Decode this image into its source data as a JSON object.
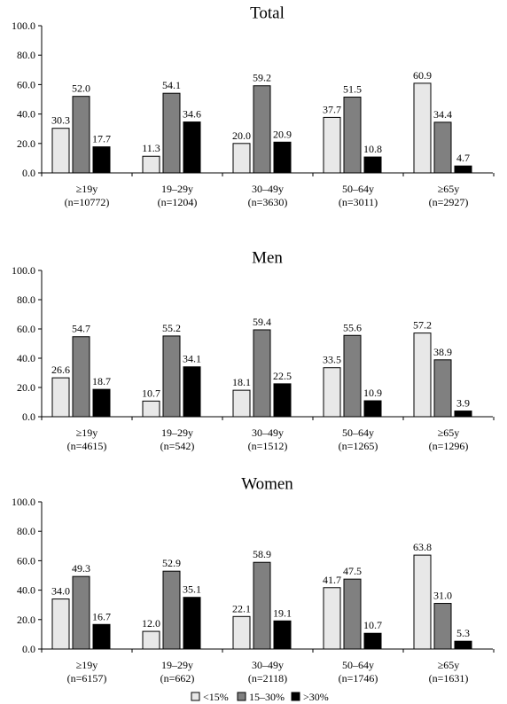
{
  "colors": {
    "<15%": "#e8e8e8",
    "15–30%": "#808080",
    ">30%": "#000000"
  },
  "legend": [
    "<15%",
    "15–30%",
    ">30%"
  ],
  "chart_data": [
    {
      "type": "bar",
      "title": "Total",
      "ylim": [
        0,
        100
      ],
      "yticks": [
        "0.0",
        "20.0",
        "40.0",
        "60.0",
        "80.0",
        "100.0"
      ],
      "categories": [
        [
          "≥19y",
          "(n=10772)"
        ],
        [
          "19–29y",
          "(n=1204)"
        ],
        [
          "30–49y",
          "(n=3630)"
        ],
        [
          "50–64y",
          "(n=3011)"
        ],
        [
          "≥65y",
          "(n=2927)"
        ]
      ],
      "series": [
        {
          "name": "<15%",
          "values": [
            30.3,
            11.3,
            20.0,
            37.7,
            60.9
          ],
          "labels": [
            "30.3",
            "11.3",
            "20.0",
            "37.7",
            "60.9"
          ]
        },
        {
          "name": "15–30%",
          "values": [
            52.0,
            54.1,
            59.2,
            51.5,
            34.4
          ],
          "labels": [
            "52.0",
            "54.1",
            "59.2",
            "51.5",
            "34.4"
          ]
        },
        {
          "name": ">30%",
          "values": [
            17.7,
            34.6,
            20.9,
            10.8,
            4.7
          ],
          "labels": [
            "17.7",
            "34.6",
            "20.9",
            "10.8",
            "4.7"
          ]
        }
      ]
    },
    {
      "type": "bar",
      "title": "Men",
      "ylim": [
        0,
        100
      ],
      "yticks": [
        "0.0",
        "20.0",
        "40.0",
        "60.0",
        "80.0",
        "100.0"
      ],
      "categories": [
        [
          "≥19y",
          "(n=4615)"
        ],
        [
          "19–29y",
          "(n=542)"
        ],
        [
          "30–49y",
          "(n=1512)"
        ],
        [
          "50–64y",
          "(n=1265)"
        ],
        [
          "≥65y",
          "(n=1296)"
        ]
      ],
      "series": [
        {
          "name": "<15%",
          "values": [
            26.6,
            10.7,
            18.1,
            33.5,
            57.2
          ],
          "labels": [
            "26.6",
            "10.7",
            "18.1",
            "33.5",
            "57.2"
          ]
        },
        {
          "name": "15–30%",
          "values": [
            54.7,
            55.2,
            59.4,
            55.6,
            38.9
          ],
          "labels": [
            "54.7",
            "55.2",
            "59.4",
            "55.6",
            "38.9"
          ]
        },
        {
          "name": ">30%",
          "values": [
            18.7,
            34.1,
            22.5,
            10.9,
            3.9
          ],
          "labels": [
            "18.7",
            "34.1",
            "22.5",
            "10.9",
            "3.9"
          ]
        }
      ]
    },
    {
      "type": "bar",
      "title": "Women",
      "ylim": [
        0,
        100
      ],
      "yticks": [
        "0.0",
        "20.0",
        "40.0",
        "60.0",
        "80.0",
        "100.0"
      ],
      "categories": [
        [
          "≥19y",
          "(n=6157)"
        ],
        [
          "19–29y",
          "(n=662)"
        ],
        [
          "30–49y",
          "(n=2118)"
        ],
        [
          "50–64y",
          "(n=1746)"
        ],
        [
          "≥65y",
          "(n=1631)"
        ]
      ],
      "series": [
        {
          "name": "<15%",
          "values": [
            34.0,
            12.0,
            22.1,
            41.7,
            63.8
          ],
          "labels": [
            "34.0",
            "12.0",
            "22.1",
            "41.7",
            "63.8"
          ]
        },
        {
          "name": "15–30%",
          "values": [
            49.3,
            52.9,
            58.9,
            47.5,
            31.0
          ],
          "labels": [
            "49.3",
            "52.9",
            "58.9",
            "47.5",
            "31.0"
          ]
        },
        {
          "name": ">30%",
          "values": [
            16.7,
            35.1,
            19.1,
            10.7,
            5.3
          ],
          "labels": [
            "16.7",
            "35.1",
            "19.1",
            "10.7",
            "5.3"
          ]
        }
      ]
    }
  ]
}
